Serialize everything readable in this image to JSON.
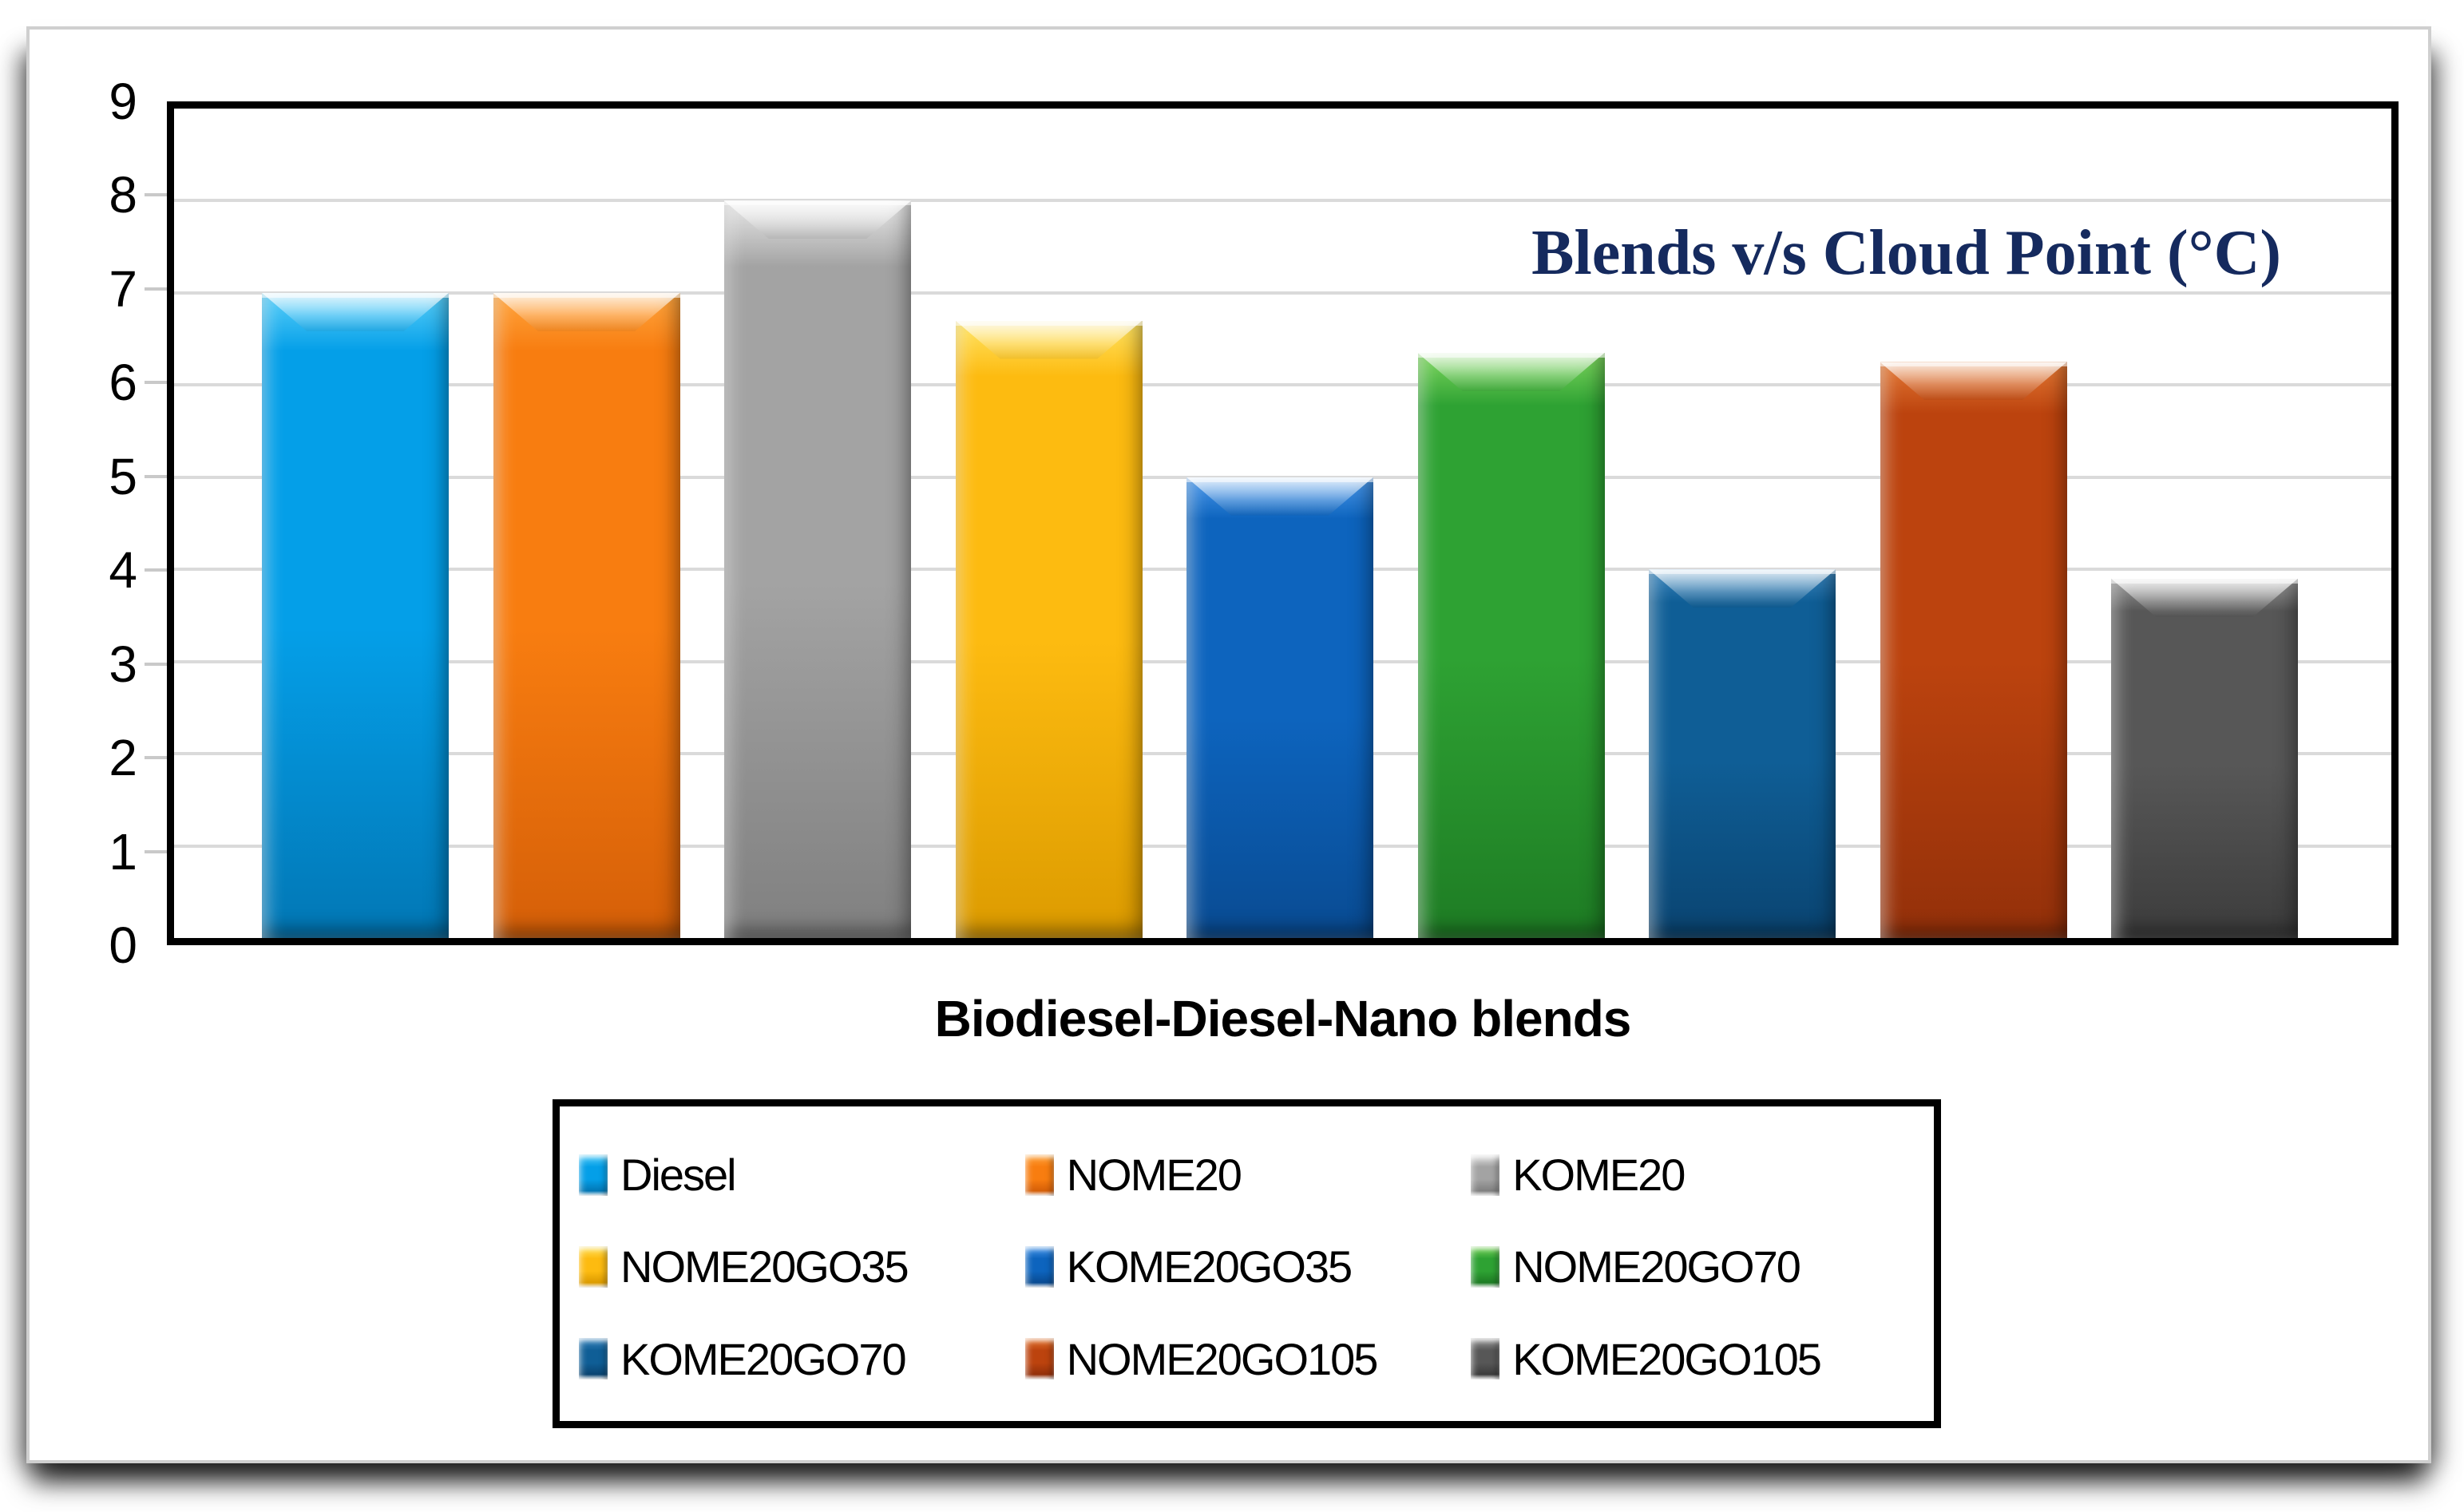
{
  "chart_data": {
    "type": "bar",
    "title": "Blends v/s Cloud Point (°C)",
    "title_color": "#152a5e",
    "xlabel": "Biodiesel-Diesel-Nano blends",
    "ylabel": "",
    "ylim": [
      0,
      9
    ],
    "yticks": [
      0,
      1,
      2,
      3,
      4,
      5,
      6,
      7,
      8,
      9
    ],
    "grid": "horizontal",
    "gridline_color": "#dadada",
    "legend_position": "bottom-boxed-3x3",
    "categories": [
      "Diesel",
      "NOME20",
      "KOME20",
      "NOME20GO35",
      "KOME20GO35",
      "NOME20GO70",
      "KOME20GO70",
      "NOME20GO105",
      "KOME20GO105"
    ],
    "series": [
      {
        "name": "Cloud Point (°C)",
        "values": [
          7,
          7,
          8,
          6.7,
          5,
          6.35,
          4,
          6.25,
          3.9
        ]
      }
    ],
    "bar_colors": [
      {
        "light": "#5bd0fa",
        "base": "#049fe8",
        "dark": "#0277b5"
      },
      {
        "light": "#ffa63f",
        "base": "#f87d10",
        "dark": "#d55f08"
      },
      {
        "light": "#e9e9e9",
        "base": "#a3a3a3",
        "dark": "#808080"
      },
      {
        "light": "#ffe566",
        "base": "#fdbb10",
        "dark": "#dc9b00"
      },
      {
        "light": "#4d9aec",
        "base": "#0d64be",
        "dark": "#094b92"
      },
      {
        "light": "#7fd75f",
        "base": "#2ea233",
        "dark": "#1e7c24"
      },
      {
        "light": "#3e88c0",
        "base": "#0f5e96",
        "dark": "#0a4471"
      },
      {
        "light": "#e57a35",
        "base": "#bc430e",
        "dark": "#93300a"
      },
      {
        "light": "#9b9b9b",
        "base": "#575757",
        "dark": "#3c3c3c"
      }
    ]
  }
}
